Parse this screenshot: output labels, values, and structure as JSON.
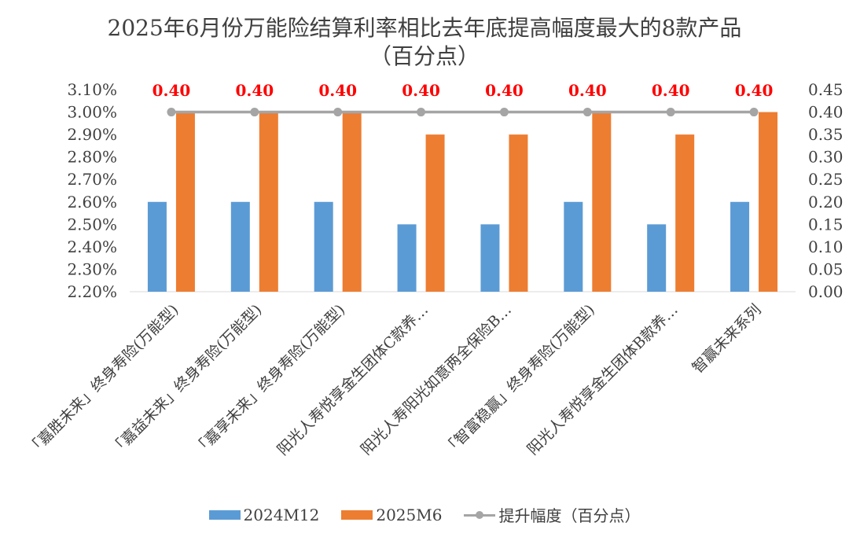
{
  "chart_data": {
    "type": "bar",
    "title": "2025年6月份万能险结算利率相比去年底提高幅度最大的8款产品",
    "subtitle": "（百分点）",
    "categories": [
      "「嘉胜未来」终身寿险(万能型)",
      "「嘉益未来」终身寿险(万能型)",
      "「嘉享未来」终身寿险(万能型)",
      "阳光人寿悦享金生团体C款养…",
      "阳光人寿阳光如意两全保险B…",
      "「智富稳赢」终身寿险(万能型)",
      "阳光人寿悦享金生团体B款养…",
      "智赢未来系列"
    ],
    "series": [
      {
        "name": "2024M12",
        "type": "bar",
        "axis": "left",
        "color": "#5b9bd5",
        "values": [
          2.6,
          2.6,
          2.6,
          2.5,
          2.5,
          2.6,
          2.5,
          2.6
        ]
      },
      {
        "name": "2025M6",
        "type": "bar",
        "axis": "left",
        "color": "#ed7d31",
        "values": [
          3.0,
          3.0,
          3.0,
          2.9,
          2.9,
          3.0,
          2.9,
          3.0
        ]
      },
      {
        "name": "提升幅度（百分点）",
        "type": "line",
        "axis": "right",
        "color": "#a5a5a5",
        "values": [
          0.4,
          0.4,
          0.4,
          0.4,
          0.4,
          0.4,
          0.4,
          0.4
        ]
      }
    ],
    "data_labels": [
      "0.40",
      "0.40",
      "0.40",
      "0.40",
      "0.40",
      "0.40",
      "0.40",
      "0.40"
    ],
    "y_left": {
      "min": 2.2,
      "max": 3.1,
      "step": 0.1,
      "ticks": [
        "2.20%",
        "2.30%",
        "2.40%",
        "2.50%",
        "2.60%",
        "2.70%",
        "2.80%",
        "2.90%",
        "3.00%",
        "3.10%"
      ]
    },
    "y_right": {
      "min": 0.0,
      "max": 0.45,
      "step": 0.05,
      "ticks": [
        "0.00",
        "0.05",
        "0.10",
        "0.15",
        "0.20",
        "0.25",
        "0.30",
        "0.35",
        "0.40",
        "0.45"
      ]
    },
    "data_label_color": "#ff0000",
    "legend_position": "bottom",
    "grid": false
  }
}
